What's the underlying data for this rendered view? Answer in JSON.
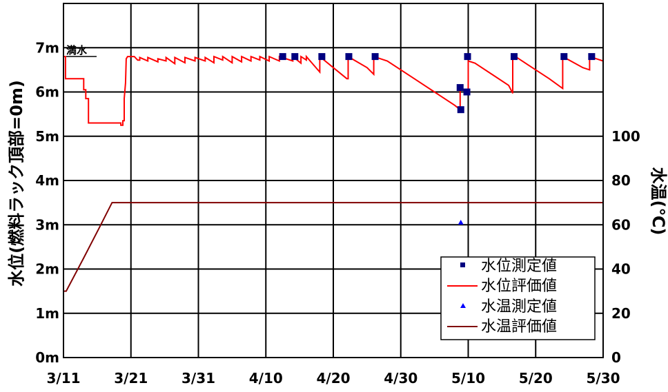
{
  "chart_data": {
    "type": "line",
    "y_left_label": "水位(燃料ラック頂部=0m)",
    "y_right_label": "水温(℃)",
    "x_range_days": [
      0,
      80
    ],
    "x_ticks": [
      {
        "day": 0,
        "label": "3/11"
      },
      {
        "day": 10,
        "label": "3/21"
      },
      {
        "day": 20,
        "label": "3/31"
      },
      {
        "day": 30,
        "label": "4/10"
      },
      {
        "day": 40,
        "label": "4/20"
      },
      {
        "day": 50,
        "label": "4/30"
      },
      {
        "day": 60,
        "label": "5/10"
      },
      {
        "day": 70,
        "label": "5/20"
      },
      {
        "day": 80,
        "label": "5/30"
      }
    ],
    "y_left_range": [
      0,
      8
    ],
    "y_left_ticks": [
      {
        "v": 0,
        "label": "0m"
      },
      {
        "v": 1,
        "label": "1m"
      },
      {
        "v": 2,
        "label": "2m"
      },
      {
        "v": 3,
        "label": "3m"
      },
      {
        "v": 4,
        "label": "4m"
      },
      {
        "v": 5,
        "label": "5m"
      },
      {
        "v": 6,
        "label": "6m"
      },
      {
        "v": 7,
        "label": "7m"
      }
    ],
    "y_right_range": [
      0,
      160
    ],
    "y_right_ticks": [
      {
        "v": 0,
        "label": "0"
      },
      {
        "v": 20,
        "label": "20"
      },
      {
        "v": 40,
        "label": "40"
      },
      {
        "v": 60,
        "label": "60"
      },
      {
        "v": 80,
        "label": "80"
      },
      {
        "v": 100,
        "label": "100"
      }
    ],
    "annotation": {
      "label": "満水",
      "day": 0.5,
      "level": 7.0
    },
    "legend": {
      "placement": "bottom-right",
      "items": [
        {
          "label": "水位測定値",
          "kind": "square",
          "color": "#000080"
        },
        {
          "label": "水位評価値",
          "kind": "line",
          "color": "#ff0000"
        },
        {
          "label": "水温測定値",
          "kind": "triangle",
          "color": "#0000ff"
        },
        {
          "label": "水温評価値",
          "kind": "line",
          "color": "#800000"
        }
      ]
    },
    "series": [
      {
        "name": "水位評価値",
        "axis": "left",
        "color": "#ff0000",
        "points": [
          [
            0,
            6.8
          ],
          [
            0.3,
            6.8
          ],
          [
            0.3,
            6.3
          ],
          [
            3,
            6.3
          ],
          [
            3,
            6.05
          ],
          [
            3.3,
            6.05
          ],
          [
            3.3,
            5.85
          ],
          [
            3.7,
            5.85
          ],
          [
            3.7,
            5.3
          ],
          [
            8.5,
            5.3
          ],
          [
            8.5,
            5.25
          ],
          [
            8.8,
            5.25
          ],
          [
            8.8,
            5.35
          ],
          [
            9.0,
            5.35
          ],
          [
            9.0,
            5.8
          ],
          [
            9.0,
            5.85
          ],
          [
            9.2,
            6.2
          ],
          [
            9.3,
            6.75
          ],
          [
            9.5,
            6.8
          ],
          [
            10.5,
            6.8
          ],
          [
            11,
            6.72
          ],
          [
            11.3,
            6.72
          ],
          [
            11.3,
            6.78
          ],
          [
            12.5,
            6.7
          ],
          [
            12.5,
            6.78
          ],
          [
            14,
            6.68
          ],
          [
            14,
            6.75
          ],
          [
            15.2,
            6.7
          ],
          [
            15.2,
            6.78
          ],
          [
            16.5,
            6.64
          ],
          [
            16.5,
            6.78
          ],
          [
            18,
            6.66
          ],
          [
            18,
            6.78
          ],
          [
            19.5,
            6.7
          ],
          [
            19.5,
            6.78
          ],
          [
            21,
            6.7
          ],
          [
            21,
            6.78
          ],
          [
            22.3,
            6.66
          ],
          [
            22.3,
            6.8
          ],
          [
            23.6,
            6.72
          ],
          [
            23.6,
            6.8
          ],
          [
            25,
            6.66
          ],
          [
            25,
            6.8
          ],
          [
            26.4,
            6.68
          ],
          [
            26.4,
            6.8
          ],
          [
            27.8,
            6.7
          ],
          [
            27.8,
            6.8
          ],
          [
            29.1,
            6.72
          ],
          [
            29.1,
            6.8
          ],
          [
            30.5,
            6.7
          ],
          [
            30.5,
            6.8
          ],
          [
            32,
            6.7
          ],
          [
            32,
            6.8
          ],
          [
            34,
            6.7
          ],
          [
            34,
            6.8
          ],
          [
            35.2,
            6.65
          ],
          [
            35.2,
            6.8
          ],
          [
            36,
            6.72
          ],
          [
            36,
            6.8
          ],
          [
            38,
            6.45
          ],
          [
            38,
            6.8
          ],
          [
            40,
            6.55
          ],
          [
            42,
            6.3
          ],
          [
            42.2,
            6.3
          ],
          [
            42.2,
            6.8
          ],
          [
            45,
            6.55
          ],
          [
            46,
            6.4
          ],
          [
            46,
            6.8
          ],
          [
            48,
            6.7
          ],
          [
            52,
            6.3
          ],
          [
            55,
            6.0
          ],
          [
            58,
            5.7
          ],
          [
            58.8,
            5.6
          ],
          [
            58.8,
            6.05
          ],
          [
            59.6,
            6.05
          ],
          [
            59.6,
            6.0
          ],
          [
            60,
            6.0
          ],
          [
            60,
            6.7
          ],
          [
            61,
            6.65
          ],
          [
            64,
            6.35
          ],
          [
            66,
            6.15
          ],
          [
            66.6,
            5.97
          ],
          [
            66.6,
            6.8
          ],
          [
            67,
            6.8
          ],
          [
            70,
            6.5
          ],
          [
            72,
            6.3
          ],
          [
            74,
            6.08
          ],
          [
            74,
            6.8
          ],
          [
            77,
            6.55
          ],
          [
            78,
            6.5
          ],
          [
            78,
            6.8
          ],
          [
            79,
            6.75
          ],
          [
            80,
            6.7
          ]
        ]
      },
      {
        "name": "水温評価値",
        "axis": "right",
        "color": "#800000",
        "points": [
          [
            0,
            30
          ],
          [
            0.4,
            30
          ],
          [
            3,
            45
          ],
          [
            5.2,
            58
          ],
          [
            7.2,
            70
          ],
          [
            80,
            70
          ]
        ]
      },
      {
        "name": "水位測定値",
        "axis": "left",
        "kind": "square",
        "color": "#000080",
        "points": [
          [
            32.5,
            6.8
          ],
          [
            34.3,
            6.8
          ],
          [
            38.3,
            6.8
          ],
          [
            42.3,
            6.8
          ],
          [
            46.2,
            6.8
          ],
          [
            58.8,
            6.1
          ],
          [
            58.9,
            5.6
          ],
          [
            59.8,
            6.0
          ],
          [
            59.9,
            6.8
          ],
          [
            66.8,
            6.8
          ],
          [
            74.2,
            6.8
          ],
          [
            78.3,
            6.8
          ]
        ]
      },
      {
        "name": "水温測定値",
        "axis": "right",
        "kind": "triangle",
        "color": "#0000ff",
        "points": [
          [
            58.9,
            61
          ]
        ]
      }
    ]
  }
}
